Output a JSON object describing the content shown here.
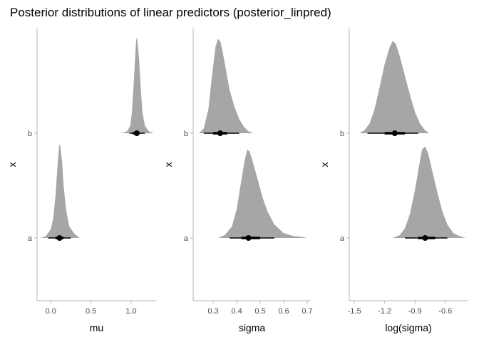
{
  "title": "Posterior distributions of linear predictors (posterior_linpred)",
  "colors": {
    "density": "#a6a6a6",
    "interval": "#000000",
    "axis": "#b3b3b3",
    "text": "#4d4d4d"
  },
  "chart_data": [
    {
      "type": "halfeye",
      "xlabel": "mu",
      "ylabel": "x",
      "categories": [
        "a",
        "b"
      ],
      "xlim": [
        -0.17,
        1.31
      ],
      "xticks": [
        0.0,
        0.5,
        1.0
      ],
      "xtick_labels": [
        "0.0",
        "0.5",
        "1.0"
      ],
      "series": [
        {
          "category": "a",
          "point": 0.11,
          "inner": [
            0.06,
            0.16
          ],
          "outer": [
            -0.03,
            0.25
          ],
          "density": {
            "x": [
              -0.12,
              -0.06,
              0.0,
              0.03,
              0.06,
              0.08,
              0.1,
              0.11,
              0.12,
              0.14,
              0.16,
              0.19,
              0.23,
              0.3,
              0.36
            ],
            "y": [
              0.0,
              0.02,
              0.09,
              0.2,
              0.45,
              0.7,
              0.92,
              0.98,
              0.95,
              0.8,
              0.55,
              0.3,
              0.12,
              0.04,
              0.0
            ]
          }
        },
        {
          "category": "b",
          "point": 1.07,
          "inner": [
            1.02,
            1.1
          ],
          "outer": [
            0.98,
            1.17
          ],
          "density": {
            "x": [
              0.88,
              0.95,
              0.99,
              1.01,
              1.03,
              1.05,
              1.06,
              1.07,
              1.08,
              1.1,
              1.12,
              1.14,
              1.17,
              1.22,
              1.28
            ],
            "y": [
              0.0,
              0.02,
              0.08,
              0.22,
              0.5,
              0.8,
              0.95,
              1.0,
              0.95,
              0.75,
              0.45,
              0.22,
              0.08,
              0.02,
              0.0
            ]
          }
        }
      ]
    },
    {
      "type": "halfeye",
      "xlabel": "sigma",
      "ylabel": "x",
      "categories": [
        "a",
        "b"
      ],
      "xlim": [
        0.215,
        0.715
      ],
      "xticks": [
        0.3,
        0.4,
        0.5,
        0.6,
        0.7
      ],
      "xtick_labels": [
        "0.3",
        "0.4",
        "0.5",
        "0.6",
        "0.7"
      ],
      "series": [
        {
          "category": "a",
          "point": 0.45,
          "inner": [
            0.42,
            0.5
          ],
          "outer": [
            0.37,
            0.56
          ],
          "density": {
            "x": [
              0.32,
              0.35,
              0.38,
              0.4,
              0.42,
              0.435,
              0.445,
              0.455,
              0.47,
              0.49,
              0.51,
              0.53,
              0.56,
              0.6,
              0.64,
              0.68,
              0.7
            ],
            "y": [
              0.0,
              0.03,
              0.12,
              0.3,
              0.6,
              0.82,
              0.92,
              0.9,
              0.78,
              0.6,
              0.42,
              0.28,
              0.14,
              0.05,
              0.02,
              0.01,
              0.0
            ]
          }
        },
        {
          "category": "b",
          "point": 0.33,
          "inner": [
            0.3,
            0.36
          ],
          "outer": [
            0.26,
            0.41
          ],
          "density": {
            "x": [
              0.24,
              0.26,
              0.28,
              0.295,
              0.31,
              0.32,
              0.33,
              0.34,
              0.355,
              0.37,
              0.39,
              0.41,
              0.43,
              0.45,
              0.47
            ],
            "y": [
              0.0,
              0.05,
              0.25,
              0.6,
              0.9,
              0.98,
              0.96,
              0.85,
              0.65,
              0.45,
              0.28,
              0.15,
              0.07,
              0.02,
              0.0
            ]
          }
        }
      ]
    },
    {
      "type": "halfeye",
      "xlabel": "log(sigma)",
      "ylabel": "x",
      "categories": [
        "a",
        "b"
      ],
      "xlim": [
        -1.55,
        -0.38
      ],
      "xticks": [
        -1.5,
        -1.2,
        -0.9,
        -0.6
      ],
      "xtick_labels": [
        "-1.5",
        "-1.2",
        "-0.9",
        "-0.6"
      ],
      "series": [
        {
          "category": "a",
          "point": -0.8,
          "inner": [
            -0.87,
            -0.7
          ],
          "outer": [
            -1.0,
            -0.58
          ],
          "density": {
            "x": [
              -1.12,
              -1.05,
              -1.0,
              -0.95,
              -0.9,
              -0.86,
              -0.83,
              -0.8,
              -0.77,
              -0.73,
              -0.68,
              -0.63,
              -0.58,
              -0.52,
              -0.46,
              -0.4
            ],
            "y": [
              0.0,
              0.03,
              0.1,
              0.25,
              0.5,
              0.75,
              0.92,
              0.95,
              0.88,
              0.7,
              0.48,
              0.28,
              0.14,
              0.05,
              0.02,
              0.0
            ]
          }
        },
        {
          "category": "b",
          "point": -1.1,
          "inner": [
            -1.2,
            -1.0
          ],
          "outer": [
            -1.37,
            -0.87
          ],
          "density": {
            "x": [
              -1.45,
              -1.4,
              -1.35,
              -1.3,
              -1.25,
              -1.2,
              -1.15,
              -1.12,
              -1.09,
              -1.05,
              -1.0,
              -0.95,
              -0.9,
              -0.85,
              -0.8,
              -0.76
            ],
            "y": [
              0.0,
              0.03,
              0.1,
              0.25,
              0.48,
              0.72,
              0.9,
              0.96,
              0.93,
              0.8,
              0.6,
              0.4,
              0.22,
              0.1,
              0.03,
              0.0
            ]
          }
        }
      ]
    }
  ]
}
